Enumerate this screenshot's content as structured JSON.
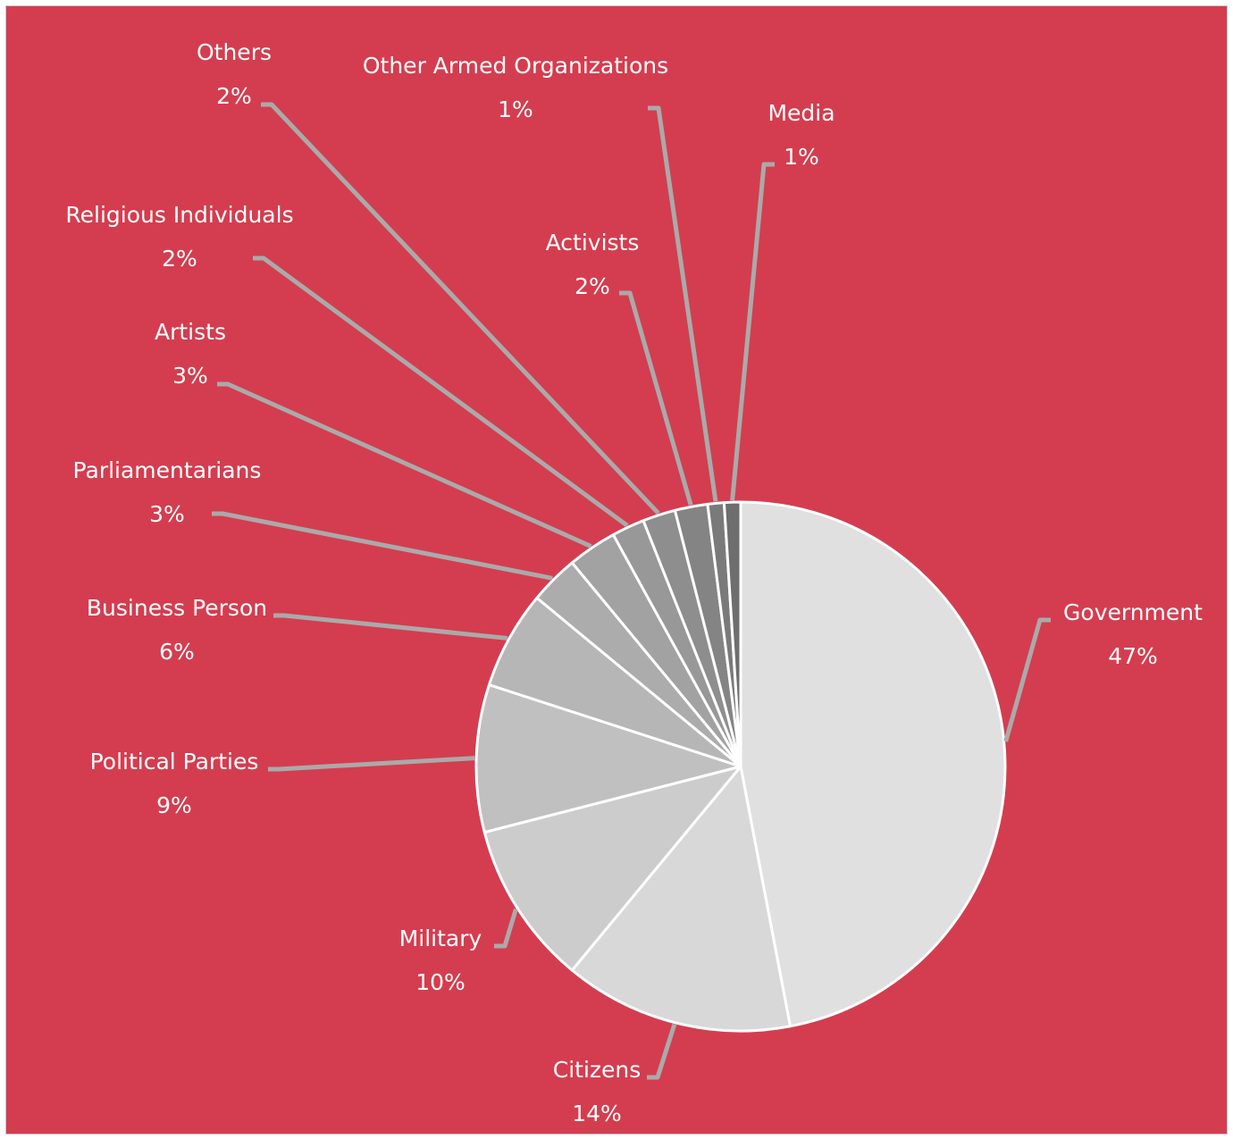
{
  "colors": {
    "background": "#d43d4f",
    "leader_line": "#aaaaaa",
    "slice_stroke": "#ffffff"
  },
  "chart_data": {
    "type": "pie",
    "title": "",
    "legend": "none",
    "slices": [
      {
        "name": "Government",
        "value": 47,
        "label": "47%",
        "color": "#e0e0e0"
      },
      {
        "name": "Citizens",
        "value": 14,
        "label": "14%",
        "color": "#d8d8d8"
      },
      {
        "name": "Military",
        "value": 10,
        "label": "10%",
        "color": "#cccccc"
      },
      {
        "name": "Political Parties",
        "value": 9,
        "label": "9%",
        "color": "#c0c0c0"
      },
      {
        "name": "Business Person",
        "value": 6,
        "label": "6%",
        "color": "#b6b6b6"
      },
      {
        "name": "Parliamentarians",
        "value": 3,
        "label": "3%",
        "color": "#acacac"
      },
      {
        "name": "Artists",
        "value": 3,
        "label": "3%",
        "color": "#a2a2a2"
      },
      {
        "name": "Religious Individuals",
        "value": 2,
        "label": "2%",
        "color": "#989898"
      },
      {
        "name": "Others",
        "value": 2,
        "label": "2%",
        "color": "#8e8e8e"
      },
      {
        "name": "Activists",
        "value": 2,
        "label": "2%",
        "color": "#848484"
      },
      {
        "name": "Other Armed Organizations",
        "value": 1,
        "label": "1%",
        "color": "#7a7a7a"
      },
      {
        "name": "Media",
        "value": 1,
        "label": "1%",
        "color": "#6e6e6e"
      }
    ]
  }
}
